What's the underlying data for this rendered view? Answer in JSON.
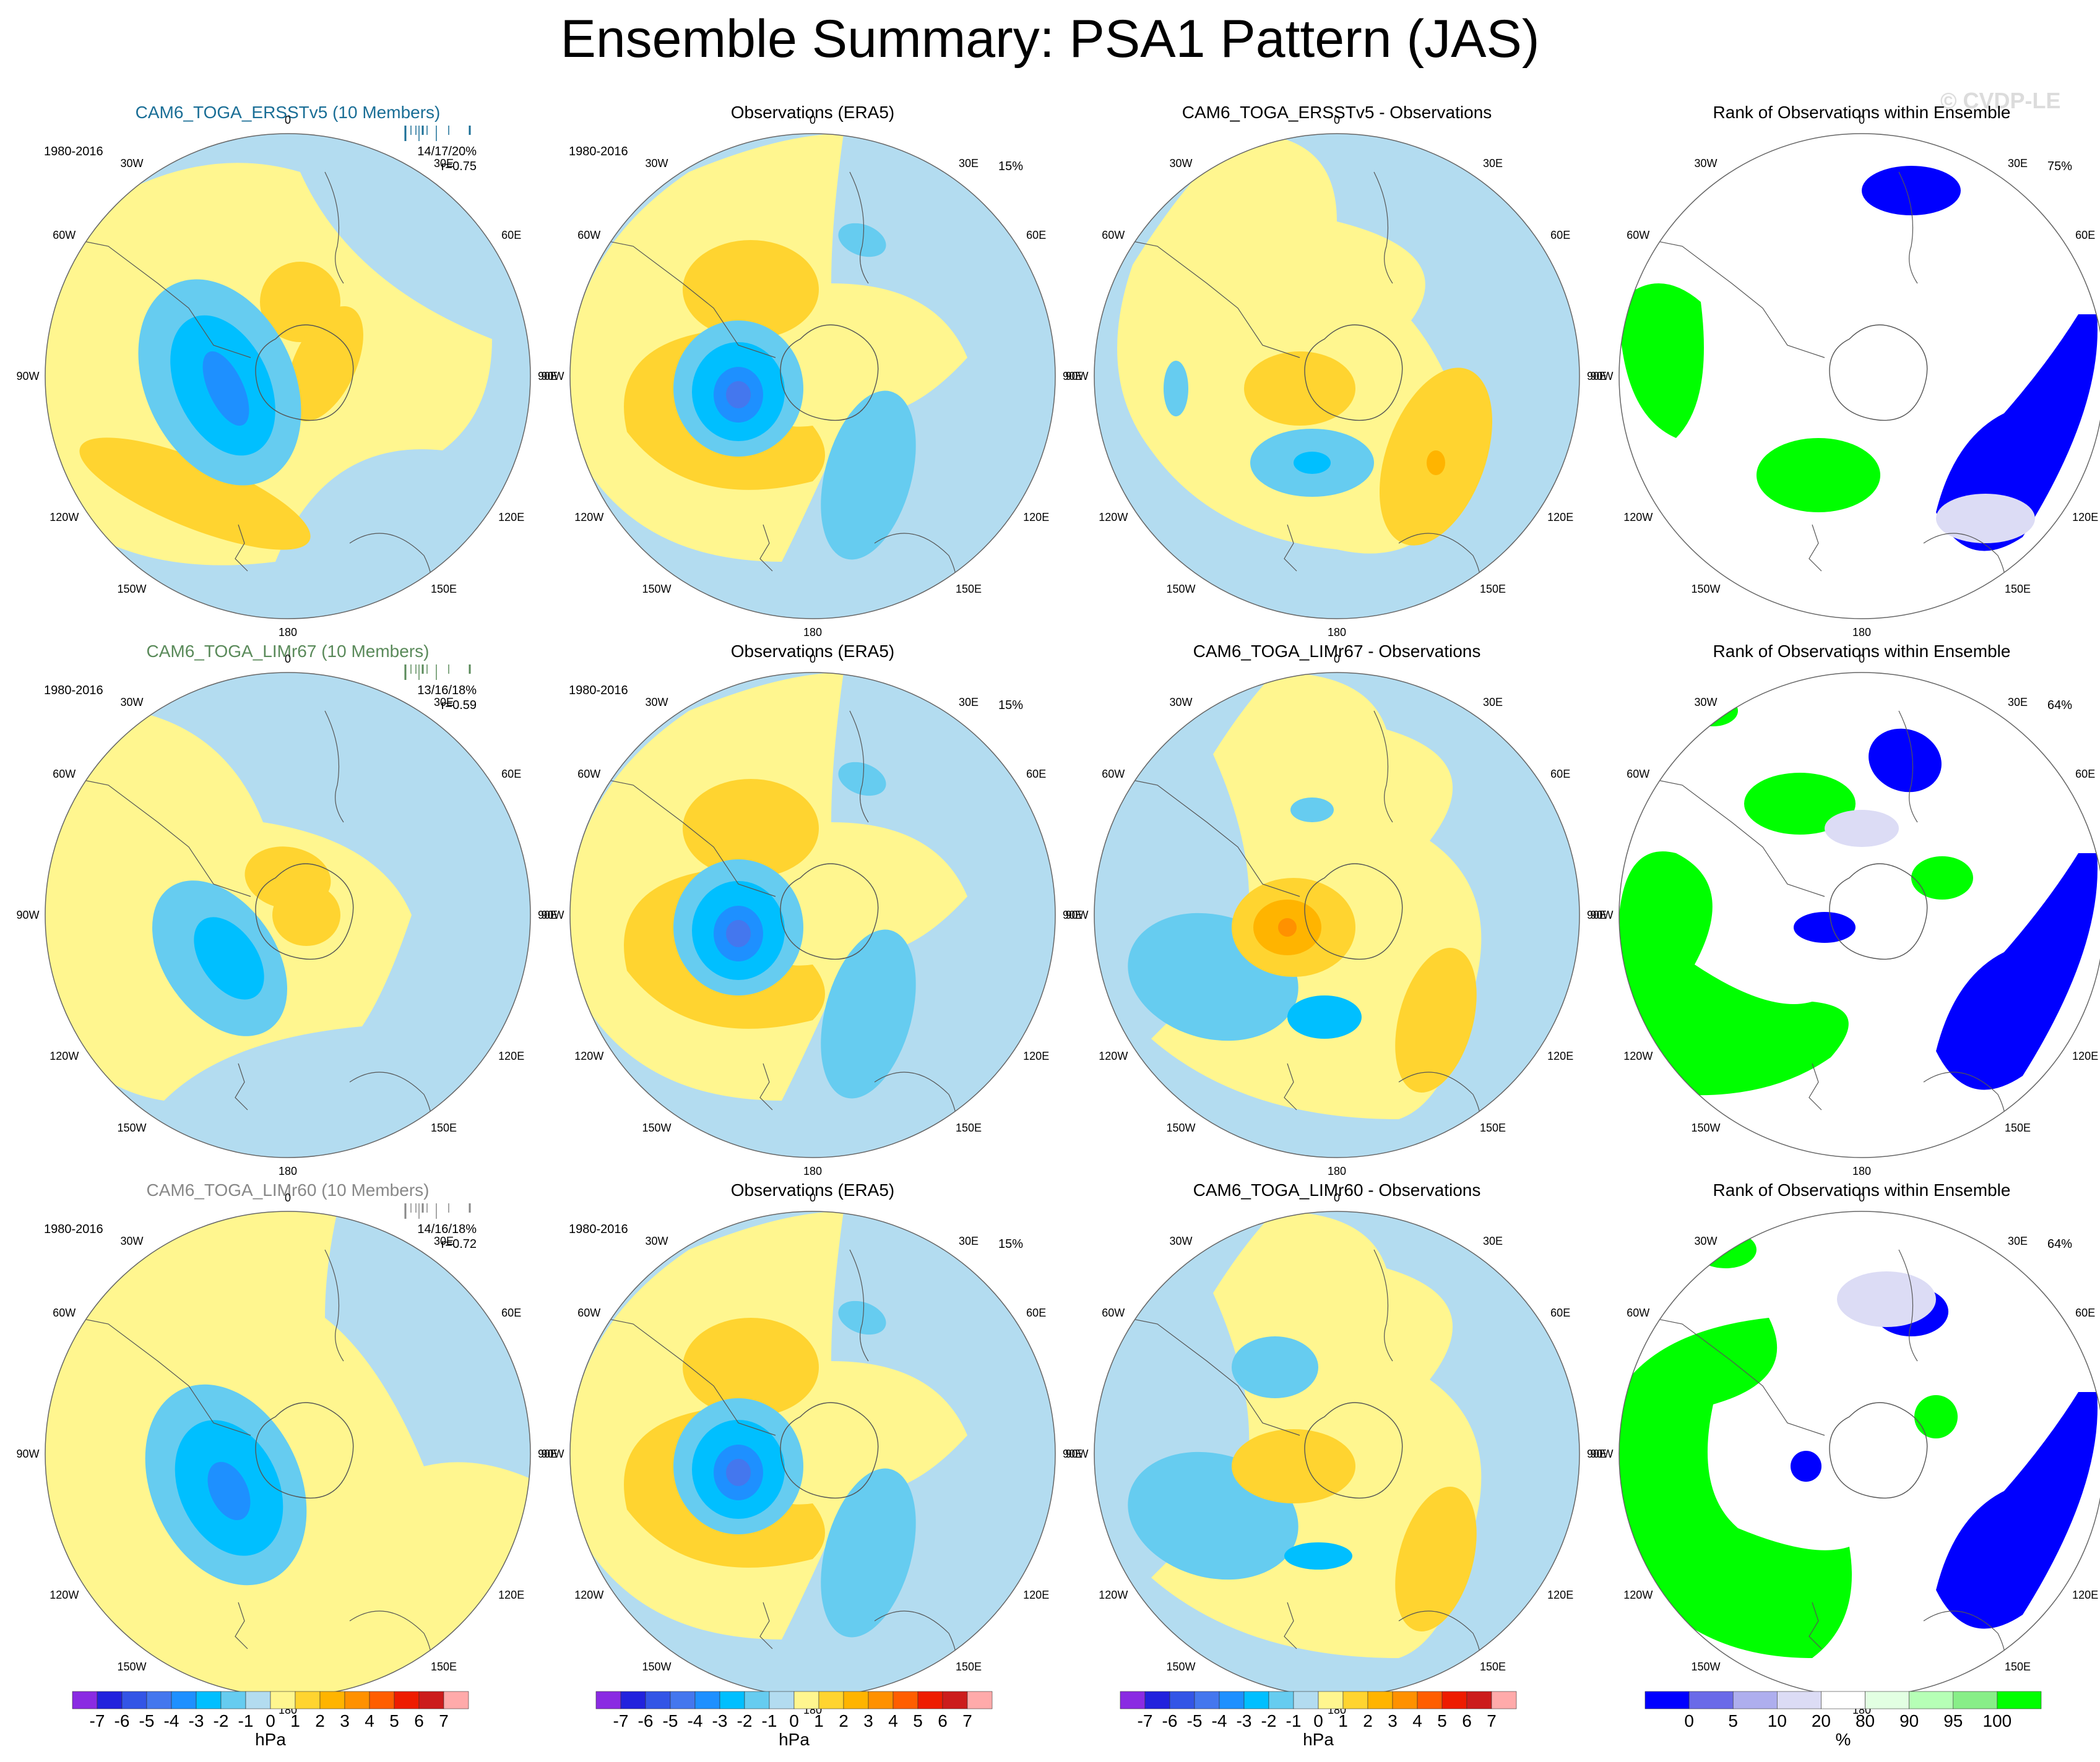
{
  "figure": {
    "title": "Ensemble Summary: PSA1 Pattern (JAS)",
    "copyright": "© CVDP-LE"
  },
  "longitude_labels": [
    "0",
    "30E",
    "60E",
    "90E",
    "120E",
    "150E",
    "180",
    "150W",
    "120W",
    "90W",
    "60W",
    "30W"
  ],
  "colors": {
    "hpa_scale": [
      "#8a2be2",
      "#2222dd",
      "#3355e6",
      "#4477ee",
      "#1e90ff",
      "#00bfff",
      "#66ccf0",
      "#b3dcf0",
      "#fff68f",
      "#ffd430",
      "#ffb400",
      "#ff9100",
      "#ff5e00",
      "#ee1c00",
      "#cc1c1c",
      "#ffaaaa"
    ],
    "rank_scale": [
      "#0000ff",
      "#6a6ae8",
      "#aeaeee",
      "#dcdcf5",
      "#ffffff",
      "#e2ffe2",
      "#b6ffb6",
      "#88ee88",
      "#00ff00"
    ]
  },
  "chart_data": [
    {
      "type": "map-panel",
      "row": "CAM6_TOGA_ERSSTv5",
      "column": "model-ensemble-mean",
      "title": "CAM6_TOGA_ERSSTv5 (10 Members)",
      "title_color": "#1a6e96",
      "period": "1980-2016",
      "stats": "14/17/20%",
      "pattern_correlation": "r=0.75",
      "pattern": "model_v5",
      "colorbar": "hPa"
    },
    {
      "type": "map-panel",
      "row": "CAM6_TOGA_ERSSTv5",
      "column": "observations",
      "title": "Observations (ERA5)",
      "title_color": "#000000",
      "period": "1980-2016",
      "percent_explained": "15%",
      "pattern": "obs",
      "colorbar": "hPa"
    },
    {
      "type": "map-panel",
      "row": "CAM6_TOGA_ERSSTv5",
      "column": "difference",
      "title": "CAM6_TOGA_ERSSTv5 - Observations",
      "title_color": "#000000",
      "pattern": "diff_v5",
      "colorbar": "hPa"
    },
    {
      "type": "map-panel",
      "row": "CAM6_TOGA_ERSSTv5",
      "column": "rank",
      "title": "Rank of Observations within Ensemble",
      "title_color": "#000000",
      "percent": "75%",
      "pattern": "rank_v5",
      "colorbar": "%"
    },
    {
      "type": "map-panel",
      "row": "CAM6_TOGA_LIMr67",
      "column": "model-ensemble-mean",
      "title": "CAM6_TOGA_LIMr67 (10 Members)",
      "title_color": "#5a8a5a",
      "period": "1980-2016",
      "stats": "13/16/18%",
      "pattern_correlation": "r=0.59",
      "pattern": "model_r67",
      "colorbar": "hPa"
    },
    {
      "type": "map-panel",
      "row": "CAM6_TOGA_LIMr67",
      "column": "observations",
      "title": "Observations (ERA5)",
      "title_color": "#000000",
      "period": "1980-2016",
      "percent_explained": "15%",
      "pattern": "obs",
      "colorbar": "hPa"
    },
    {
      "type": "map-panel",
      "row": "CAM6_TOGA_LIMr67",
      "column": "difference",
      "title": "CAM6_TOGA_LIMr67 - Observations",
      "title_color": "#000000",
      "pattern": "diff_r67",
      "colorbar": "hPa"
    },
    {
      "type": "map-panel",
      "row": "CAM6_TOGA_LIMr67",
      "column": "rank",
      "title": "Rank of Observations within Ensemble",
      "title_color": "#000000",
      "percent": "64%",
      "pattern": "rank_r67",
      "colorbar": "%"
    },
    {
      "type": "map-panel",
      "row": "CAM6_TOGA_LIMr60",
      "column": "model-ensemble-mean",
      "title": "CAM6_TOGA_LIMr60 (10 Members)",
      "title_color": "#888888",
      "period": "1980-2016",
      "stats": "14/16/18%",
      "pattern_correlation": "r=0.72",
      "pattern": "model_r60",
      "colorbar": "hPa"
    },
    {
      "type": "map-panel",
      "row": "CAM6_TOGA_LIMr60",
      "column": "observations",
      "title": "Observations (ERA5)",
      "title_color": "#000000",
      "period": "1980-2016",
      "percent_explained": "15%",
      "pattern": "obs",
      "colorbar": "hPa"
    },
    {
      "type": "map-panel",
      "row": "CAM6_TOGA_LIMr60",
      "column": "difference",
      "title": "CAM6_TOGA_LIMr60 - Observations",
      "title_color": "#000000",
      "pattern": "diff_r60",
      "colorbar": "hPa"
    },
    {
      "type": "map-panel",
      "row": "CAM6_TOGA_LIMr60",
      "column": "rank",
      "title": "Rank of Observations within Ensemble",
      "title_color": "#000000",
      "percent": "64%",
      "pattern": "rank_r60",
      "colorbar": "%"
    }
  ],
  "colorbars": [
    {
      "type": "colorbar",
      "unit": "hPa",
      "scale": "hpa_scale",
      "tick_labels": [
        "-7",
        "-6",
        "-5",
        "-4",
        "-3",
        "-2",
        "-1",
        "0",
        "1",
        "2",
        "3",
        "4",
        "5",
        "6",
        "7"
      ]
    },
    {
      "type": "colorbar",
      "unit": "hPa",
      "scale": "hpa_scale",
      "tick_labels": [
        "-7",
        "-6",
        "-5",
        "-4",
        "-3",
        "-2",
        "-1",
        "0",
        "1",
        "2",
        "3",
        "4",
        "5",
        "6",
        "7"
      ]
    },
    {
      "type": "colorbar",
      "unit": "hPa",
      "scale": "hpa_scale",
      "tick_labels": [
        "-7",
        "-6",
        "-5",
        "-4",
        "-3",
        "-2",
        "-1",
        "0",
        "1",
        "2",
        "3",
        "4",
        "5",
        "6",
        "7"
      ]
    },
    {
      "type": "colorbar",
      "unit": "%",
      "scale": "rank_scale",
      "tick_labels": [
        "0",
        "5",
        "10",
        "20",
        "80",
        "90",
        "95",
        "100"
      ]
    }
  ]
}
